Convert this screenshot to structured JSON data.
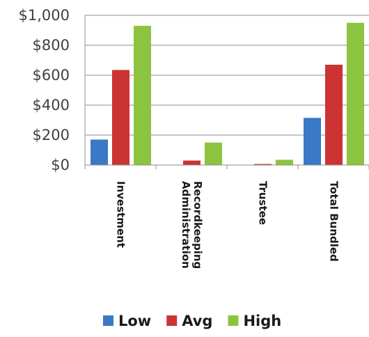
{
  "chart_data": {
    "type": "bar",
    "categories": [
      [
        "Investment"
      ],
      [
        "Recordkeeping",
        "Administration"
      ],
      [
        "Trustee"
      ],
      [
        "Total Bundled"
      ]
    ],
    "series": [
      {
        "name": "Low",
        "values": [
          170,
          0,
          0,
          315
        ],
        "color": "#3b78c6"
      },
      {
        "name": "Avg",
        "values": [
          635,
          30,
          5,
          670
        ],
        "color": "#cc3333"
      },
      {
        "name": "High",
        "values": [
          930,
          150,
          35,
          950
        ],
        "color": "#8cc43f"
      }
    ],
    "yticks": [
      "$0",
      "$200",
      "$400",
      "$600",
      "$800",
      "$1,000"
    ],
    "ylim": [
      0,
      1000
    ],
    "grid": true,
    "legend": "bottom"
  }
}
